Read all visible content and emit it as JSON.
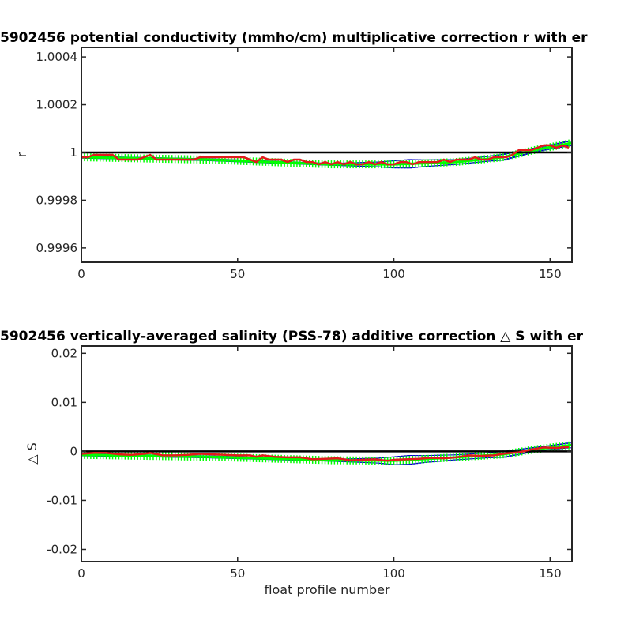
{
  "chart_data": [
    {
      "type": "line",
      "title": "5902456 potential conductivity (mmho/cm) multiplicative correction r with er",
      "xlabel": "",
      "ylabel": "r",
      "xlim": [
        0,
        157
      ],
      "ylim": [
        0.99954,
        1.00044
      ],
      "x_ticks": [
        {
          "value": 0,
          "label": "0"
        },
        {
          "value": 50,
          "label": "50"
        },
        {
          "value": 100,
          "label": "100"
        },
        {
          "value": 150,
          "label": "150"
        }
      ],
      "y_ticks": [
        {
          "value": 1.0004,
          "label": "1.0004"
        },
        {
          "value": 1.0002,
          "label": "1.0002"
        },
        {
          "value": 1.0,
          "label": "1"
        },
        {
          "value": 0.9998,
          "label": "0.9998"
        },
        {
          "value": 0.9996,
          "label": "0.9996"
        }
      ],
      "reference_line": 1.0,
      "grid": false,
      "series": [
        {
          "role": "correction-fit",
          "color": "#00ff00",
          "x": [
            0,
            40,
            80,
            100,
            120,
            135,
            145,
            157
          ],
          "y": [
            0.99998,
            0.99997,
            0.99995,
            0.99995,
            0.99996,
            0.99998,
            1.00001,
            1.00004
          ]
        },
        {
          "role": "correction-error",
          "color": "#0000cc",
          "x": [
            0,
            40,
            80,
            95,
            100,
            105,
            110,
            120,
            130,
            135,
            140,
            145,
            150,
            157
          ],
          "err": [
            4e-06,
            4e-06,
            4e-06,
            1e-05,
            1.5e-05,
            1.8e-05,
            1.4e-05,
            1e-05,
            1e-05,
            1.2e-05,
            1e-05,
            8e-06,
            8e-06,
            1e-05
          ]
        },
        {
          "role": "unadjusted-estimate",
          "color": "#e31a1c",
          "x": [
            0,
            2,
            4,
            6,
            8,
            10,
            12,
            16,
            18,
            20,
            22,
            24,
            26,
            28,
            30,
            32,
            34,
            36,
            38,
            40,
            42,
            44,
            46,
            48,
            50,
            52,
            54,
            56,
            58,
            60,
            62,
            64,
            66,
            68,
            70,
            72,
            74,
            76,
            78,
            80,
            82,
            84,
            86,
            88,
            90,
            92,
            94,
            96,
            98,
            100,
            102,
            104,
            106,
            108,
            110,
            112,
            114,
            116,
            118,
            120,
            122,
            124,
            126,
            128,
            130,
            132,
            134,
            136,
            138,
            140,
            142,
            144,
            146,
            148,
            150,
            152,
            154,
            156
          ],
          "y": [
            0.99998,
            0.99998,
            0.99999,
            0.99999,
            0.99999,
            0.99999,
            0.99997,
            0.99997,
            0.99997,
            0.99998,
            0.99999,
            0.99997,
            0.99997,
            0.99997,
            0.99997,
            0.99997,
            0.99997,
            0.99997,
            0.99998,
            0.99998,
            0.99998,
            0.99998,
            0.99998,
            0.99998,
            0.99998,
            0.99998,
            0.99997,
            0.99996,
            0.99998,
            0.99997,
            0.99997,
            0.99997,
            0.99996,
            0.99997,
            0.99997,
            0.99996,
            0.99996,
            0.99995,
            0.99996,
            0.99995,
            0.99996,
            0.99995,
            0.99996,
            0.99995,
            0.99995,
            0.99996,
            0.99995,
            0.99996,
            0.99995,
            0.99995,
            0.99996,
            0.99996,
            0.99995,
            0.99996,
            0.99996,
            0.99996,
            0.99996,
            0.99997,
            0.99996,
            0.99997,
            0.99997,
            0.99997,
            0.99998,
            0.99997,
            0.99997,
            0.99998,
            0.99998,
            0.99998,
            0.99999,
            1.00001,
            1.00001,
            1.00001,
            1.00002,
            1.00003,
            1.00003,
            1.00002,
            1.00003,
            1.00002
          ]
        }
      ]
    },
    {
      "type": "line",
      "title": "5902456 vertically-averaged salinity (PSS-78) additive correction △ S with er",
      "xlabel": "float profile number",
      "ylabel": "△ S",
      "xlim": [
        0,
        157
      ],
      "ylim": [
        -0.0225,
        0.0215
      ],
      "x_ticks": [
        {
          "value": 0,
          "label": "0"
        },
        {
          "value": 50,
          "label": "50"
        },
        {
          "value": 100,
          "label": "100"
        },
        {
          "value": 150,
          "label": "150"
        }
      ],
      "y_ticks": [
        {
          "value": 0.02,
          "label": "0.02"
        },
        {
          "value": 0.01,
          "label": "0.01"
        },
        {
          "value": 0,
          "label": "0"
        },
        {
          "value": -0.01,
          "label": "-0.01"
        },
        {
          "value": -0.02,
          "label": "-0.02"
        }
      ],
      "reference_line": 0,
      "grid": false,
      "series": [
        {
          "role": "correction-fit",
          "color": "#00ff00",
          "x": [
            0,
            40,
            80,
            100,
            120,
            135,
            145,
            157
          ],
          "y": [
            -0.0007,
            -0.0011,
            -0.0018,
            -0.0019,
            -0.0012,
            -0.0006,
            0.0004,
            0.0013
          ]
        },
        {
          "role": "correction-error",
          "color": "#0000cc",
          "x": [
            0,
            40,
            80,
            95,
            100,
            105,
            110,
            120,
            130,
            135,
            140,
            145,
            150,
            157
          ],
          "err": [
            0.0002,
            0.0002,
            0.0002,
            0.0005,
            0.0008,
            0.0009,
            0.0007,
            0.0005,
            0.0005,
            0.0006,
            0.0005,
            0.0004,
            0.0004,
            0.0005
          ]
        },
        {
          "role": "unadjusted-estimate",
          "color": "#e31a1c",
          "x": [
            0,
            4,
            8,
            12,
            16,
            20,
            22,
            26,
            30,
            34,
            38,
            42,
            46,
            50,
            54,
            56,
            58,
            62,
            66,
            70,
            74,
            78,
            82,
            86,
            90,
            94,
            98,
            100,
            104,
            108,
            112,
            116,
            120,
            124,
            128,
            132,
            136,
            140,
            144,
            148,
            152,
            156
          ],
          "y": [
            -0.0005,
            -0.0003,
            -0.0003,
            -0.0006,
            -0.0007,
            -0.0005,
            -0.0003,
            -0.0008,
            -0.0008,
            -0.0007,
            -0.0005,
            -0.0006,
            -0.0007,
            -0.0008,
            -0.0008,
            -0.0011,
            -0.0008,
            -0.0011,
            -0.0012,
            -0.0012,
            -0.0016,
            -0.0015,
            -0.0014,
            -0.0018,
            -0.0017,
            -0.0016,
            -0.0019,
            -0.0017,
            -0.0016,
            -0.0015,
            -0.0013,
            -0.0014,
            -0.0012,
            -0.0008,
            -0.0009,
            -0.0008,
            -0.0004,
            -0.0002,
            0.0004,
            0.0008,
            0.0007,
            0.0009
          ]
        }
      ]
    }
  ]
}
